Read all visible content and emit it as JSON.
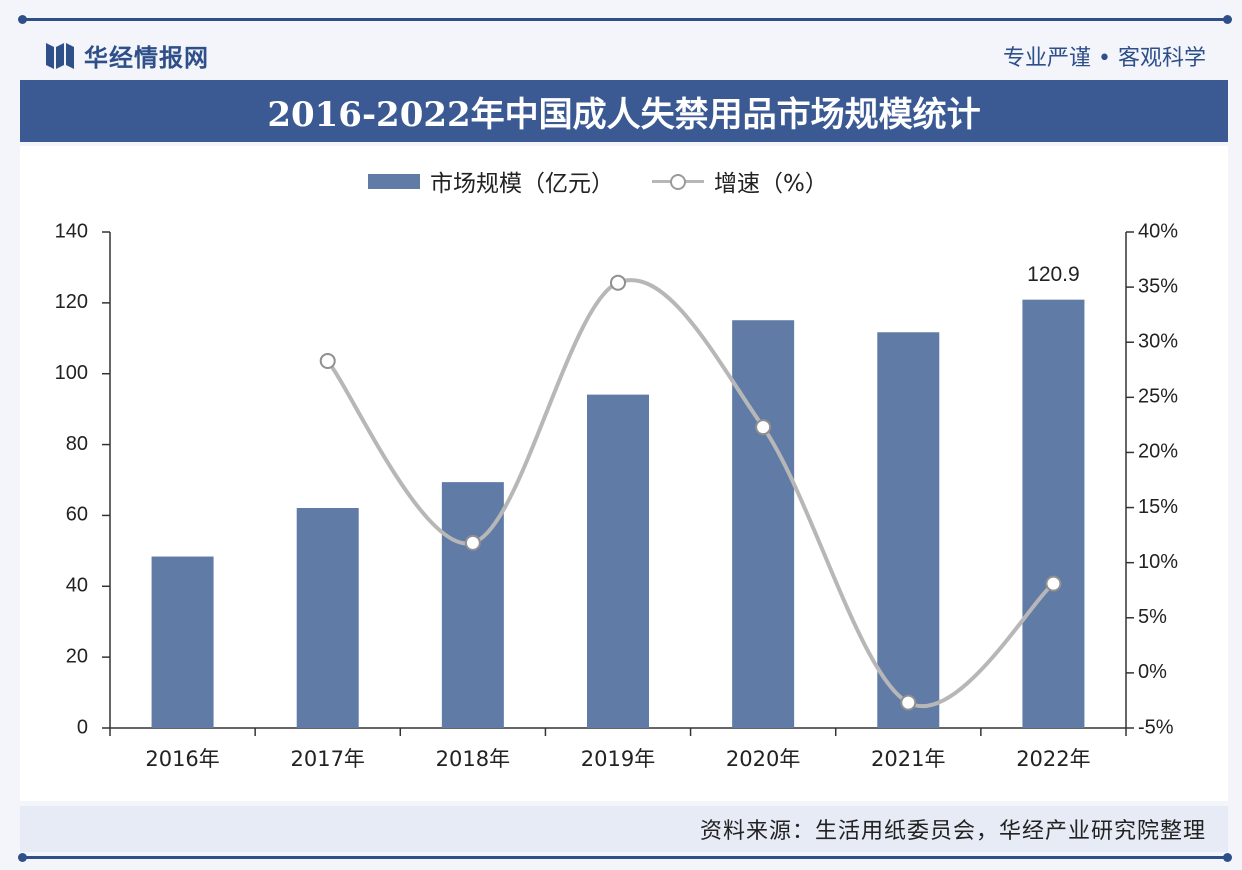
{
  "header": {
    "brand": "华经情报网",
    "slogan": "专业严谨 • 客观科学",
    "title": "2016-2022年中国成人失禁用品市场规模统计"
  },
  "legend": {
    "bar_label": "市场规模（亿元）",
    "line_label": "增速（%）"
  },
  "footer": {
    "source": "资料来源：生活用纸委员会，华经产业研究院整理"
  },
  "colors": {
    "bar": "#617ba7",
    "line": "#b7b7b7",
    "title_band": "#3b5a94"
  },
  "chart_data": {
    "type": "bar",
    "title": "2016-2022年中国成人失禁用品市场规模统计",
    "categories": [
      "2016年",
      "2017年",
      "2018年",
      "2019年",
      "2020年",
      "2021年",
      "2022年"
    ],
    "series": [
      {
        "name": "市场规模（亿元）",
        "type": "bar",
        "axis": "left",
        "values": [
          48.4,
          62.1,
          69.4,
          94.1,
          115.1,
          111.7,
          120.9
        ]
      },
      {
        "name": "增速（%）",
        "type": "line",
        "axis": "right",
        "values": [
          null,
          28.3,
          11.8,
          35.4,
          22.3,
          -2.7,
          8.1
        ]
      }
    ],
    "data_labels": [
      {
        "category": "2022年",
        "series": "市场规模（亿元）",
        "text": "120.9"
      }
    ],
    "y_left": {
      "min": 0,
      "max": 140,
      "step": 20,
      "ticks": [
        "0",
        "20",
        "40",
        "60",
        "80",
        "100",
        "120",
        "140"
      ]
    },
    "y_right": {
      "min": -5,
      "max": 40,
      "step": 5,
      "ticks": [
        "-5%",
        "0%",
        "5%",
        "10%",
        "15%",
        "20%",
        "25%",
        "30%",
        "35%",
        "40%"
      ]
    },
    "grid": false,
    "legend_position": "top"
  }
}
